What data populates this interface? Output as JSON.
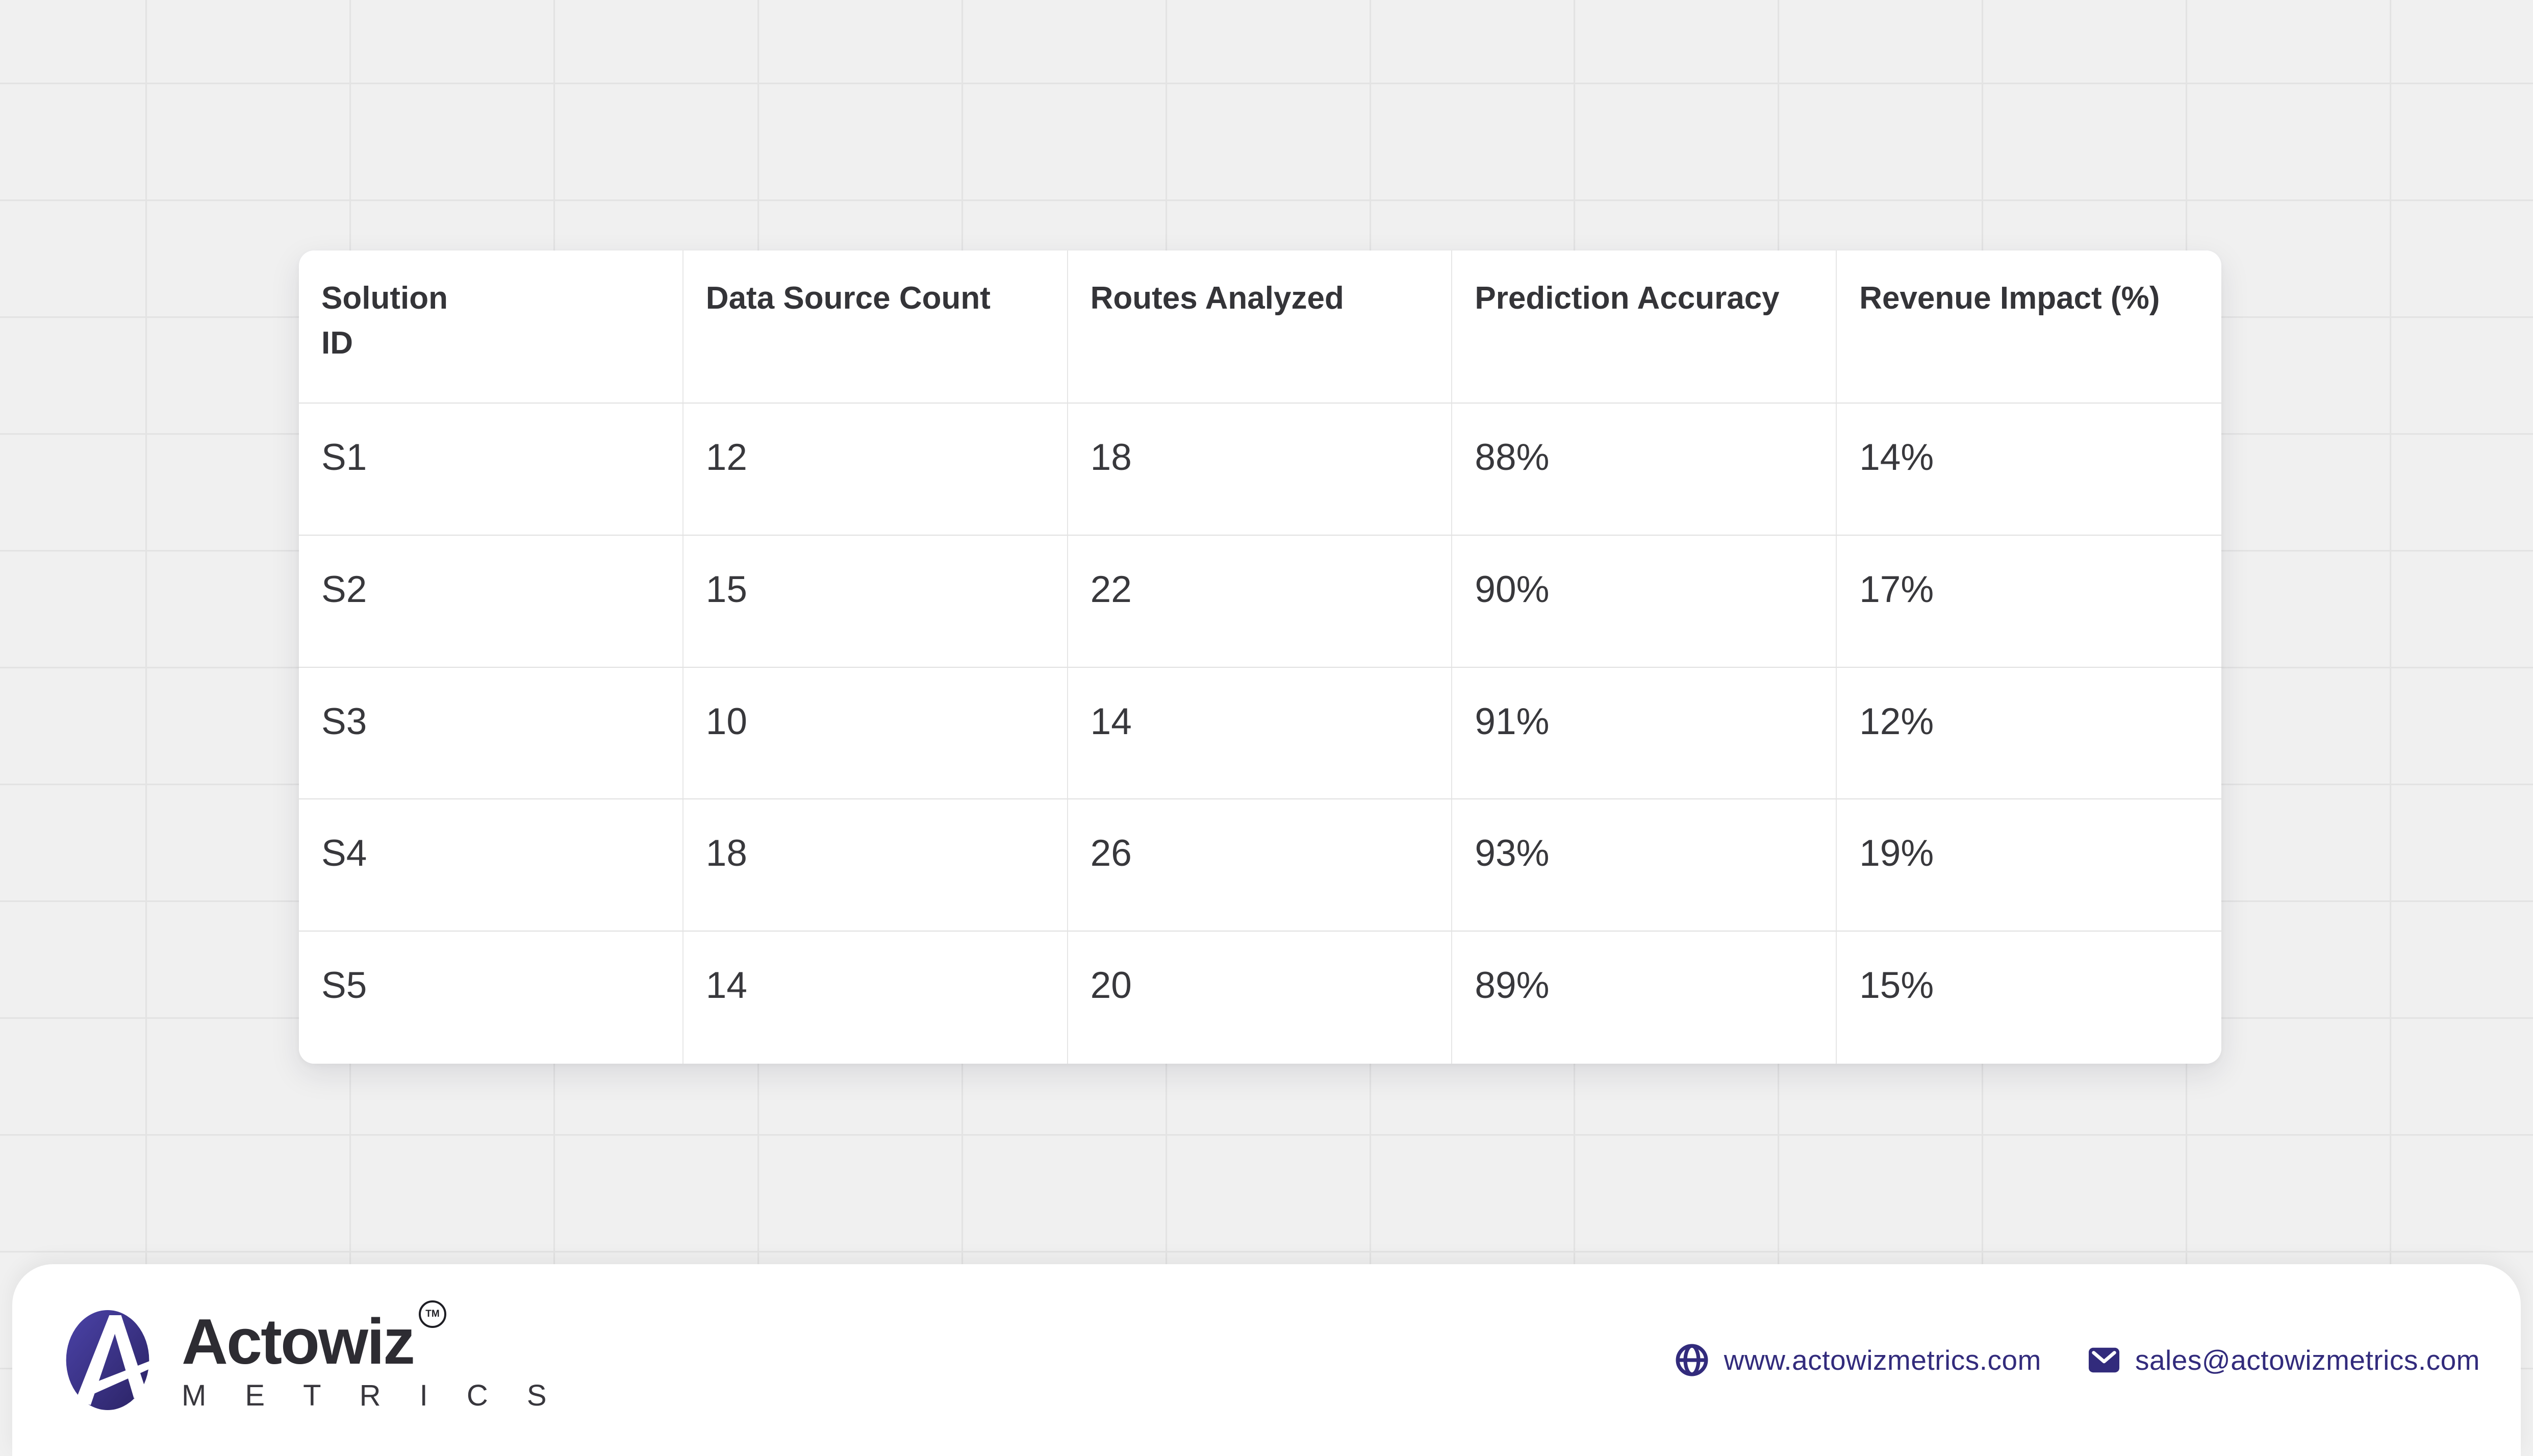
{
  "page": {
    "background_color": "#f0f0f0",
    "grid_line_color": "#e3e3e3",
    "card_color": "#ffffff"
  },
  "table": {
    "columns": [
      "Solution\n ID",
      "Data Source Count",
      "Routes Analyzed",
      "Prediction Accuracy",
      "Revenue Impact (%)"
    ],
    "rows": [
      [
        "S1",
        "12",
        "18",
        "88%",
        "14%"
      ],
      [
        "S2",
        "15",
        "22",
        "90%",
        "17%"
      ],
      [
        "S3",
        "10",
        "14",
        "91%",
        "12%"
      ],
      [
        "S4",
        "18",
        "26",
        "93%",
        "19%"
      ],
      [
        "S5",
        "14",
        "20",
        "89%",
        "15%"
      ]
    ],
    "divider_color": "#e0e0e0",
    "text_color": "#38383c"
  },
  "chart_data": {
    "type": "table",
    "title": "",
    "columns": [
      "Solution ID",
      "Data Source Count",
      "Routes Analyzed",
      "Prediction Accuracy",
      "Revenue Impact (%)"
    ],
    "rows": [
      {
        "solution_id": "S1",
        "data_source_count": 12,
        "routes_analyzed": 18,
        "prediction_accuracy_pct": 88,
        "revenue_impact_pct": 14
      },
      {
        "solution_id": "S2",
        "data_source_count": 15,
        "routes_analyzed": 22,
        "prediction_accuracy_pct": 90,
        "revenue_impact_pct": 17
      },
      {
        "solution_id": "S3",
        "data_source_count": 10,
        "routes_analyzed": 14,
        "prediction_accuracy_pct": 91,
        "revenue_impact_pct": 12
      },
      {
        "solution_id": "S4",
        "data_source_count": 18,
        "routes_analyzed": 26,
        "prediction_accuracy_pct": 93,
        "revenue_impact_pct": 19
      },
      {
        "solution_id": "S5",
        "data_source_count": 14,
        "routes_analyzed": 20,
        "prediction_accuracy_pct": 89,
        "revenue_impact_pct": 15
      }
    ]
  },
  "footer": {
    "brand": {
      "name": "Actowiz",
      "subtitle": "M E T R I C S",
      "trademark": "TM",
      "logo_icon": "actowiz-a-logo-icon",
      "logo_gradient_top": "#4b43a8",
      "logo_gradient_bottom": "#2a2263"
    },
    "links": {
      "website": "www.actowizmetrics.com",
      "website_icon": "globe-icon",
      "email": "sales@actowizmetrics.com",
      "email_icon": "mail-icon",
      "accent_color": "#322b7c"
    }
  }
}
